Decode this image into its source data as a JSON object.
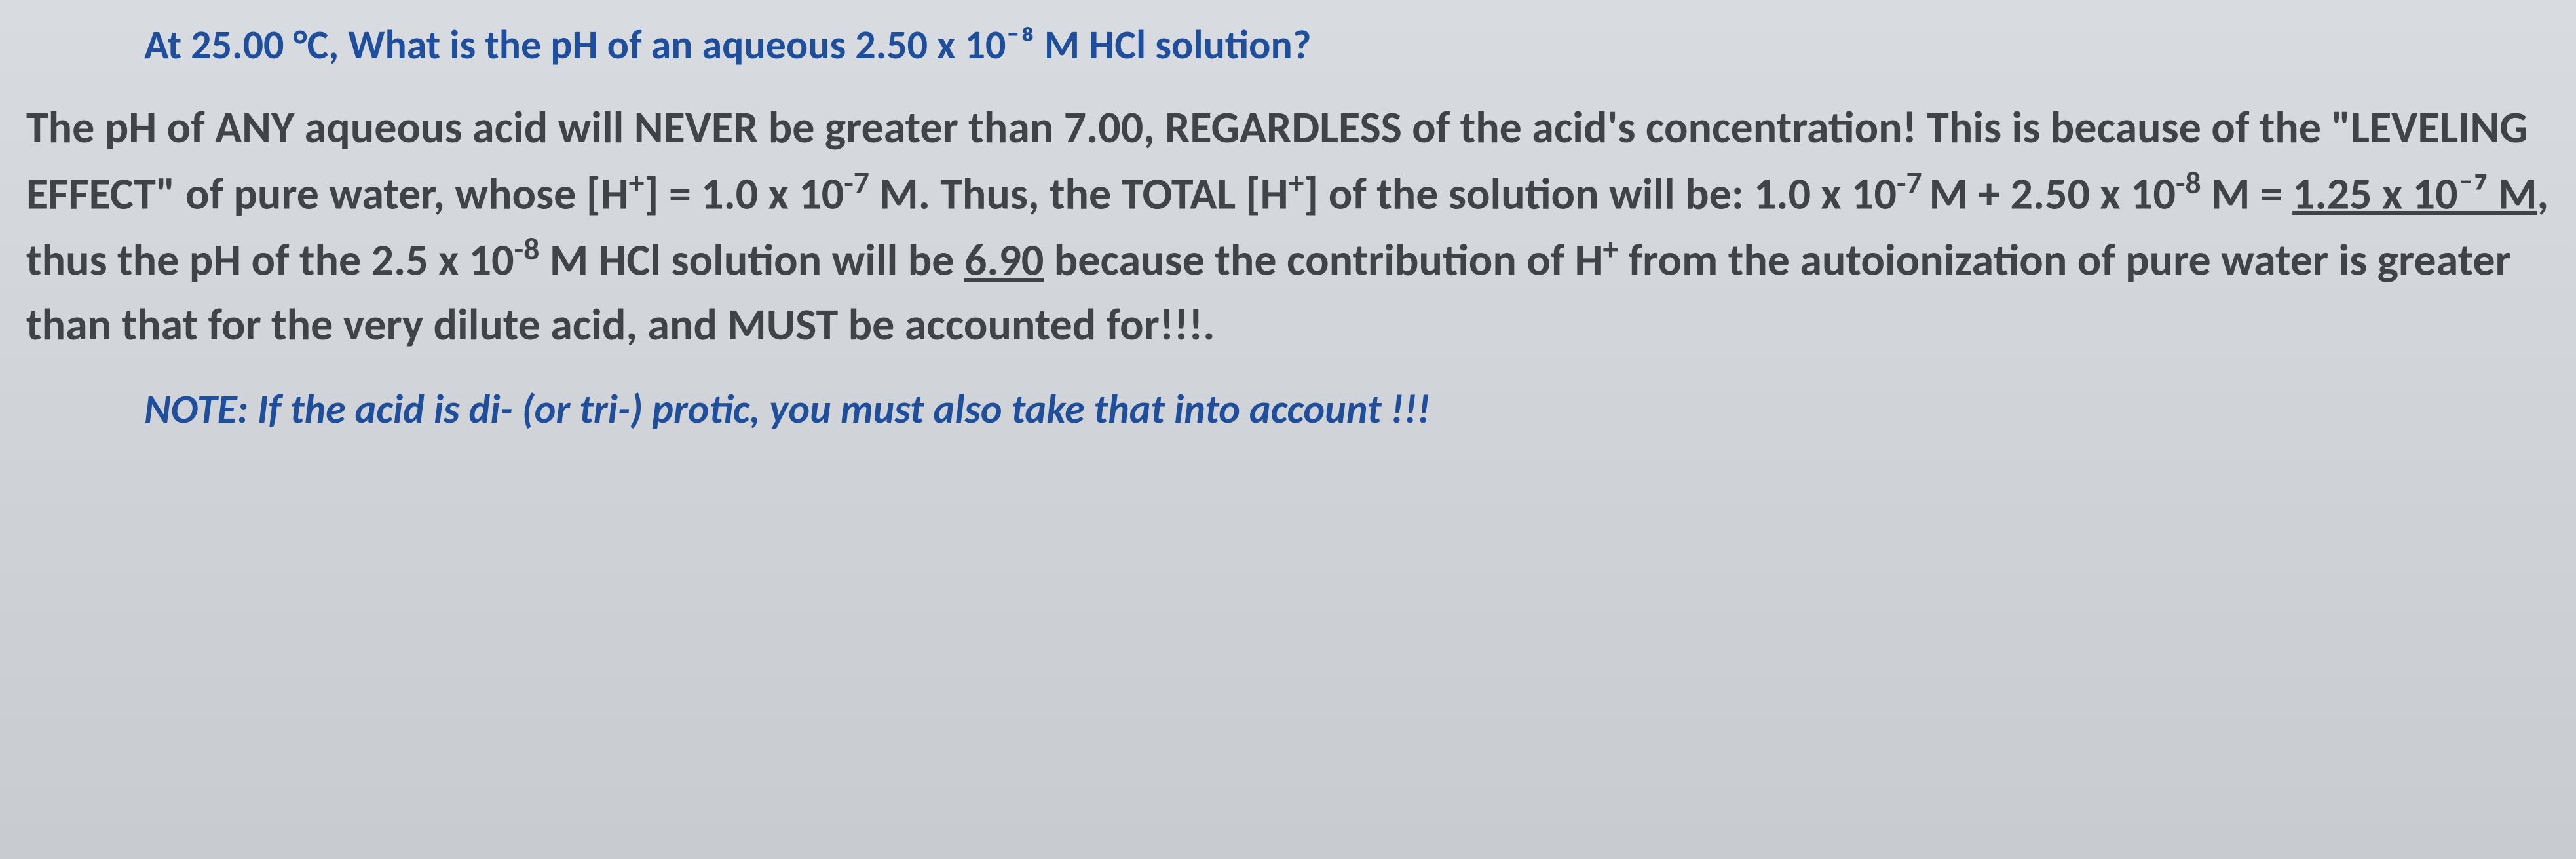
{
  "question": {
    "text": "At 25.00 °C, What is the pH of an aqueous 2.50 x 10⁻⁸ M HCl solution?",
    "color": "#1f4e9c",
    "fontsize": 62,
    "fontweight": "bold"
  },
  "answer": {
    "line1_part1": "The pH of ANY aqueous acid will NEVER be greater than 7.00, REGARDLESS of the acid's concentration! This is because of the \"LEVELING EFFECT\" of pure water, whose [H",
    "line1_sup1": "+",
    "line1_part2": "] = 1.0 x 10",
    "line1_sup2": "-7",
    "line1_part3": " M. Thus, the TOTAL [H",
    "line1_sup3": "+",
    "line1_part4": "] of the solution will be: 1.0 x 10",
    "line1_sup4": "-7 ",
    "line1_part5": "M + 2.50 x 10",
    "line1_sup5": "-8",
    "line1_part6": " M = ",
    "line1_underline1": "1.25 x 10⁻⁷ M",
    "line1_part7": ", thus the pH of the 2.5 x 10",
    "line1_sup6": "-8",
    "line1_part8": " M HCl solution will be ",
    "line1_underline2": "6.90",
    "line1_part9": " because the contribution of H",
    "line1_sup7": "+",
    "line1_part10": " from the autoionization of pure water is greater than that for the very dilute acid, and MUST be accounted for!!!.",
    "color": "#404448",
    "fontsize": 68,
    "fontweight": "bold"
  },
  "note": {
    "text": "NOTE: If the acid is di- (or tri-) protic, you must also take that into account !!!",
    "color": "#1f4e9c",
    "fontsize": 62,
    "fontweight": "bold",
    "fontstyle": "italic"
  },
  "background": {
    "gradient_top": "#d8dce0",
    "gradient_bottom": "#c8ccd0"
  }
}
